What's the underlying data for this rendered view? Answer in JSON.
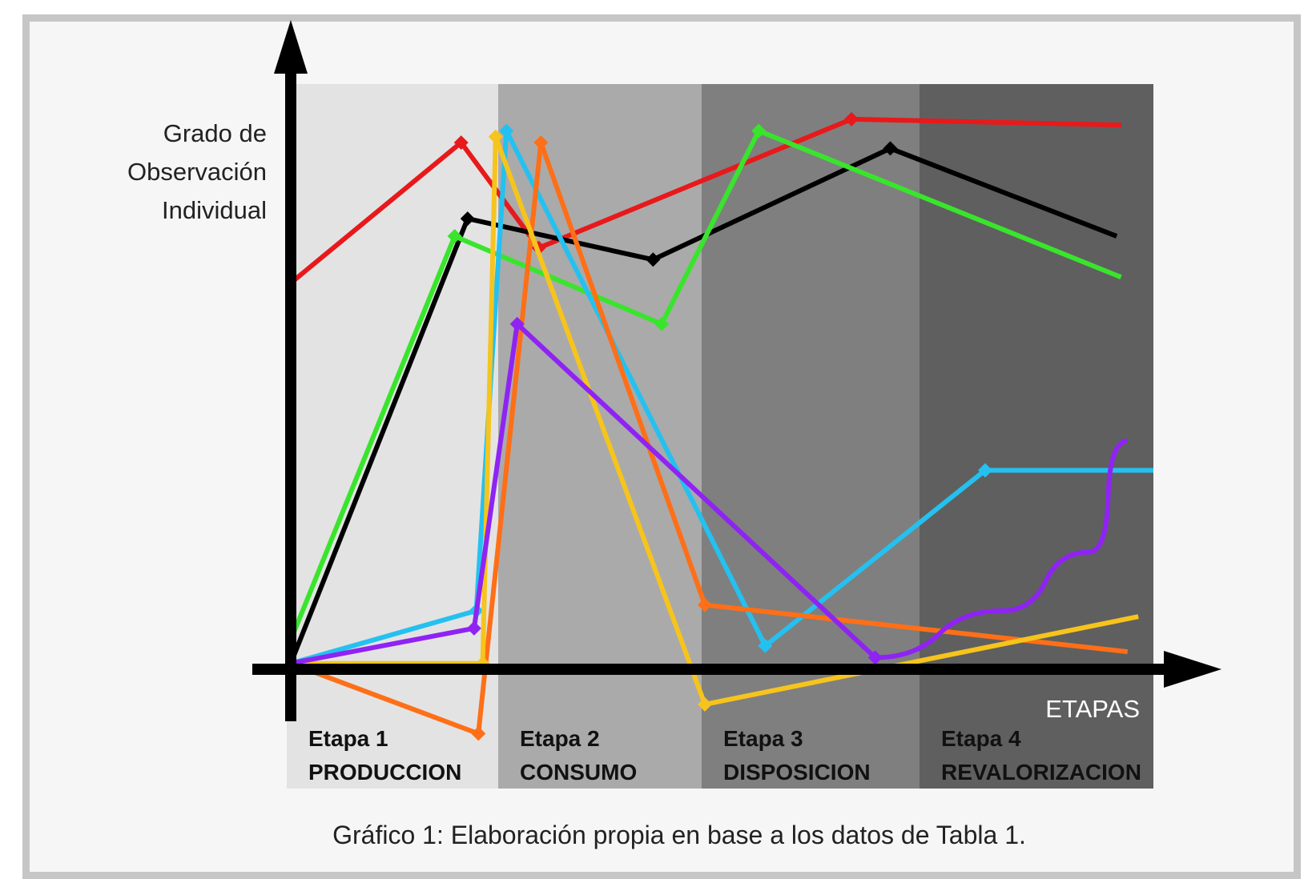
{
  "chart_data": {
    "type": "line",
    "ylabel": [
      "Grado de",
      "Observación",
      "Individual"
    ],
    "xlabel": "ETAPAS",
    "caption": "Gráfico 1: Elaboración propia en base a los datos de Tabla 1.",
    "xlim": [
      0,
      4
    ],
    "ylim": [
      -0.08,
      1.0
    ],
    "stages": [
      {
        "line1": "Etapa 1",
        "line2": "PRODUCCION",
        "color": "#e3e3e3"
      },
      {
        "line1": "Etapa 2",
        "line2": "CONSUMO",
        "color": "#aaaaaa"
      },
      {
        "line1": "Etapa 3",
        "line2": "DISPOSICION",
        "color": "#7f7f7f"
      },
      {
        "line1": "Etapa 4",
        "line2": "REVALORIZACION",
        "color": "#5f5f5f"
      }
    ],
    "series": [
      {
        "color": "#e8191b",
        "smooth": false,
        "points": [
          [
            0.0,
            0.66
          ],
          [
            0.79,
            0.9
          ],
          [
            1.15,
            0.72
          ],
          [
            2.6,
            0.94
          ],
          [
            3.85,
            0.93
          ]
        ]
      },
      {
        "color": "#000000",
        "smooth": false,
        "points": [
          [
            0.0,
            0.01
          ],
          [
            0.82,
            0.77
          ],
          [
            1.68,
            0.7
          ],
          [
            2.78,
            0.89
          ],
          [
            3.83,
            0.74
          ]
        ]
      },
      {
        "color": "#39e52c",
        "smooth": false,
        "points": [
          [
            0.0,
            0.05
          ],
          [
            0.76,
            0.74
          ],
          [
            1.72,
            0.59
          ],
          [
            2.17,
            0.92
          ],
          [
            3.85,
            0.67
          ]
        ]
      },
      {
        "color": "#24c1f0",
        "smooth": false,
        "points": [
          [
            0.0,
            0.01
          ],
          [
            0.86,
            0.1
          ],
          [
            1.0,
            0.92
          ],
          [
            2.2,
            0.04
          ],
          [
            3.22,
            0.34
          ],
          [
            4.0,
            0.34
          ]
        ]
      },
      {
        "color": "#ff6f17",
        "smooth": false,
        "points": [
          [
            0.0,
            0.01
          ],
          [
            0.87,
            -0.11
          ],
          [
            1.16,
            0.9
          ],
          [
            1.92,
            0.11
          ],
          [
            3.88,
            0.03
          ]
        ]
      },
      {
        "color": "#f6c41c",
        "smooth": false,
        "points": [
          [
            0.0,
            0.01
          ],
          [
            0.89,
            0.01
          ],
          [
            0.95,
            0.91
          ],
          [
            1.92,
            -0.06
          ],
          [
            3.93,
            0.09
          ]
        ]
      },
      {
        "color": "#8f23f3",
        "smooth": true,
        "points": [
          [
            0.0,
            0.01
          ],
          [
            0.85,
            0.07
          ],
          [
            1.05,
            0.59
          ],
          [
            2.71,
            0.02
          ],
          [
            3.3,
            0.1
          ],
          [
            3.7,
            0.2
          ],
          [
            3.88,
            0.39
          ]
        ]
      }
    ]
  }
}
